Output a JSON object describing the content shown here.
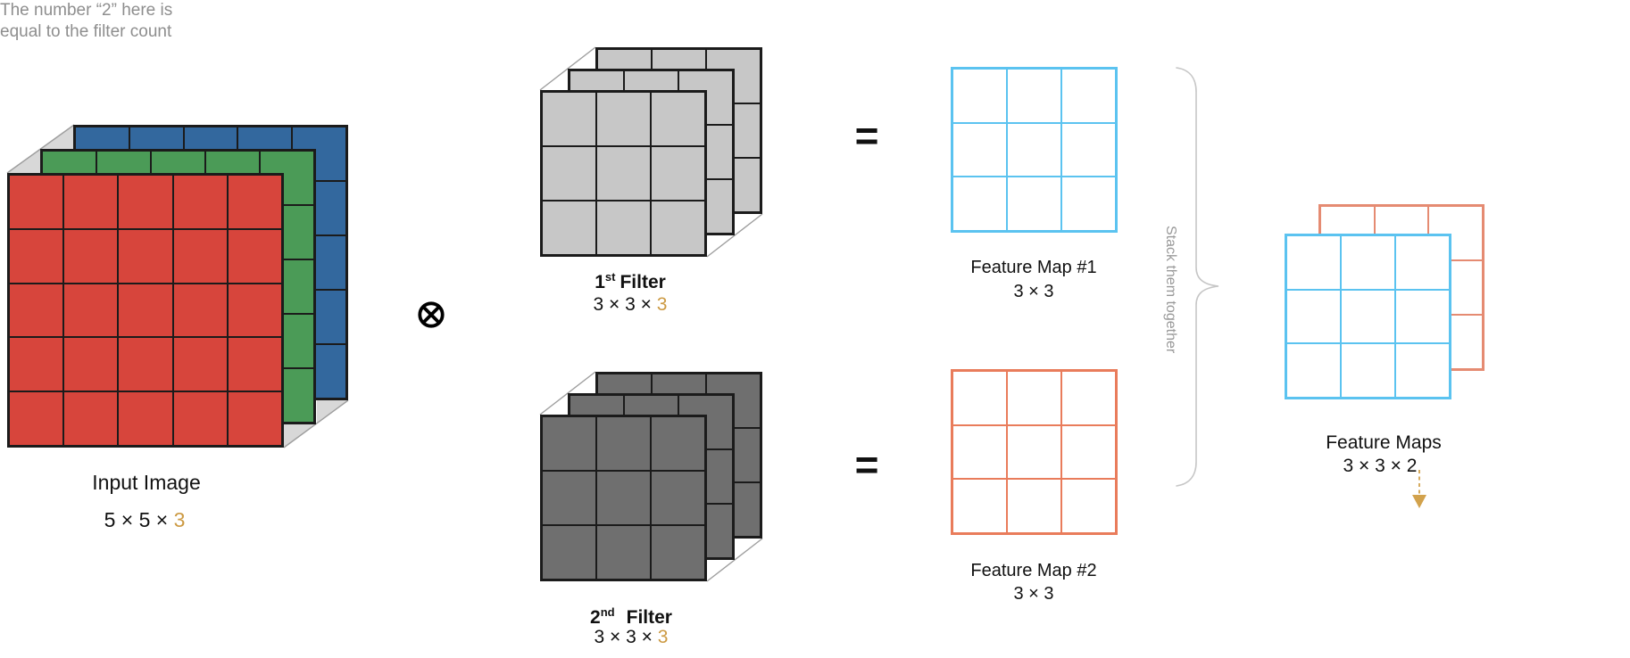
{
  "colors": {
    "red": "#D7453C",
    "green": "#4B9B57",
    "blue": "#33689E",
    "filter_light": "#C7C7C7",
    "filter_dark": "#6F6F6F",
    "fm_blue": "#5BC3F0",
    "fm_orange": "#E97C5B",
    "stacked_orange": "#E58B72",
    "grid_line": "#1B1B1B",
    "slab_gray": "#D8D8D8",
    "slab_edge": "#9E9E9E",
    "brace_gray": "#C6C6C6",
    "gold": "#CC9A43",
    "arrow_gold": "#D2A24C",
    "note_gray": "#8E8E8E",
    "stack_gray": "#999999"
  },
  "input_image": {
    "label": "Input Image",
    "dims_prefix": "5 × 5 × ",
    "dims_channels": "3",
    "rows": 5,
    "cols": 5,
    "channel_layers": [
      "blue",
      "green",
      "red"
    ]
  },
  "operator": "⊗",
  "equals": "=",
  "filters": [
    {
      "ordinal": "1",
      "ordinal_suffix": "st",
      "word": "Filter",
      "dims_prefix": "3 × 3 × ",
      "dims_channels": "3",
      "rows": 3,
      "cols": 3,
      "depth": 3
    },
    {
      "ordinal": "2",
      "ordinal_suffix": "nd",
      "word": "Filter",
      "dims_prefix": "3 × 3 × ",
      "dims_channels": "3",
      "rows": 3,
      "cols": 3,
      "depth": 3
    }
  ],
  "feature_maps": [
    {
      "label": "Feature Map #1",
      "dims": "3 × 3",
      "rows": 3,
      "cols": 3
    },
    {
      "label": "Feature Map #2",
      "dims": "3 × 3",
      "rows": 3,
      "cols": 3
    }
  ],
  "stack_brace": {
    "label": "Stack them together"
  },
  "stacked_maps": {
    "label": "Feature Maps",
    "dims": "3 × 3 × 2",
    "rows": 3,
    "cols": 3
  },
  "annotation": {
    "line1": "The number “2” here is",
    "line2": "equal to the filter count"
  }
}
